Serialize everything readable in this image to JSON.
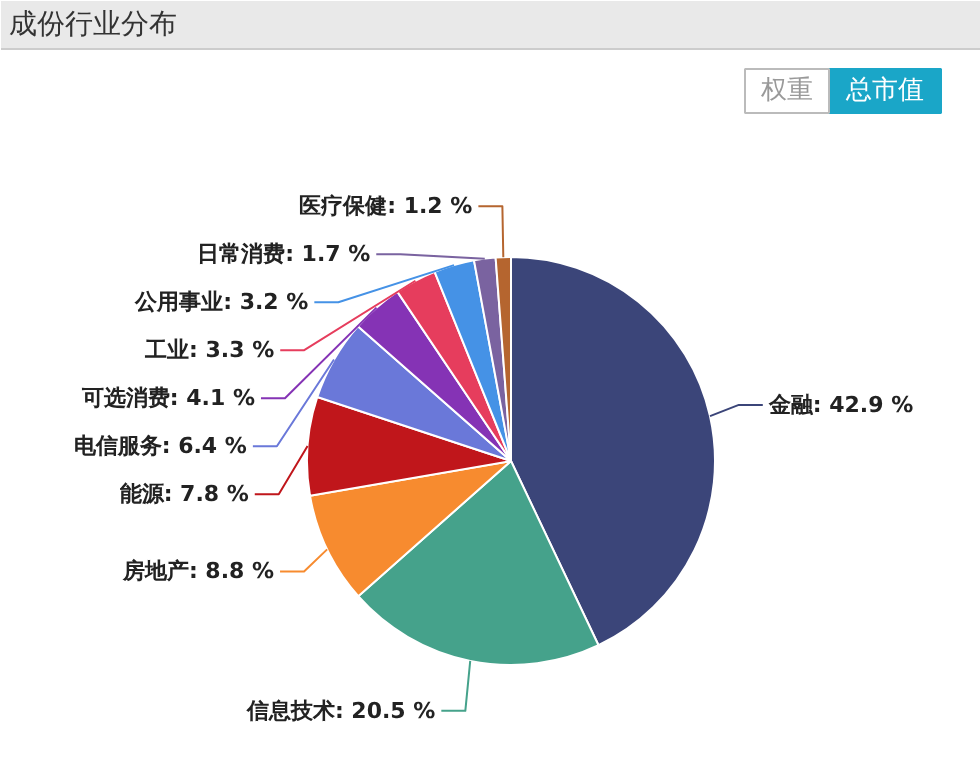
{
  "chart_data": {
    "type": "pie",
    "title": "成份行业分布",
    "categories": [
      "金融",
      "信息技术",
      "房地产",
      "能源",
      "电信服务",
      "可选消费",
      "工业",
      "公用事业",
      "日常消费",
      "医疗保健"
    ],
    "values": [
      42.9,
      20.5,
      8.8,
      7.8,
      6.4,
      4.1,
      3.3,
      3.2,
      1.7,
      1.2
    ],
    "value_labels": [
      "42.9 %",
      "20.5 %",
      "8.8 %",
      "7.8 %",
      "6.4 %",
      "4.1 %",
      "3.3 %",
      "3.2 %",
      "1.7 %",
      "1.2 %"
    ],
    "colors": [
      "#3b4579",
      "#45a28b",
      "#f78b2f",
      "#c0161b",
      "#6a78d9",
      "#8533b5",
      "#e63d5d",
      "#4592e6",
      "#7a63a0",
      "#b5652f"
    ],
    "annotations": [
      "权重",
      "总市值"
    ]
  }
}
